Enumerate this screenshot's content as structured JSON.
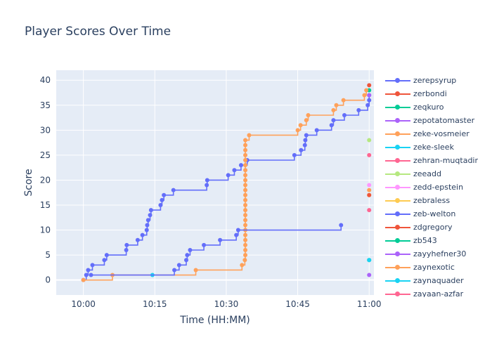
{
  "chart_data": {
    "type": "line",
    "line_shape": "step-after",
    "title": "Player Scores Over Time",
    "xlabel": "Time (HH:MM)",
    "ylabel": "Score",
    "x_ticks": [
      "10:00",
      "10:15",
      "10:30",
      "10:45",
      "11:00"
    ],
    "x_tick_minutes": [
      0,
      15,
      30,
      45,
      60
    ],
    "xlim_minutes": [
      -5.7,
      61.0
    ],
    "y_ticks": [
      0,
      5,
      10,
      15,
      20,
      25,
      30,
      35,
      40
    ],
    "ylim": [
      -3,
      42
    ],
    "grid": true,
    "legend_position": "right",
    "background": "#e5ecf6",
    "series": [
      {
        "name": "zerepsyrup",
        "color": "#636efa",
        "points": [
          [
            0,
            0
          ],
          [
            0.6,
            1
          ],
          [
            1.0,
            2
          ],
          [
            1.9,
            3
          ],
          [
            4.4,
            4
          ],
          [
            4.9,
            5
          ],
          [
            9.0,
            6
          ],
          [
            9.1,
            7
          ],
          [
            11.4,
            8
          ],
          [
            12.4,
            9
          ],
          [
            13.3,
            10
          ],
          [
            13.4,
            11
          ],
          [
            13.6,
            12
          ],
          [
            14.0,
            13
          ],
          [
            14.2,
            14
          ],
          [
            16.2,
            15
          ],
          [
            16.5,
            16
          ],
          [
            16.9,
            17
          ],
          [
            18.9,
            18
          ],
          [
            25.9,
            19
          ],
          [
            26.0,
            20
          ],
          [
            30.4,
            21
          ],
          [
            31.7,
            22
          ],
          [
            33.1,
            23
          ],
          [
            34.4,
            24
          ],
          [
            44.3,
            25
          ],
          [
            45.7,
            26
          ],
          [
            46.5,
            27
          ],
          [
            46.6,
            28
          ],
          [
            46.8,
            29
          ],
          [
            49.0,
            30
          ],
          [
            52.1,
            31
          ],
          [
            52.5,
            32
          ],
          [
            54.8,
            33
          ],
          [
            57.8,
            34
          ],
          [
            59.7,
            35
          ],
          [
            60.0,
            36
          ],
          [
            60.0,
            37
          ]
        ]
      },
      {
        "name": "zerbondi",
        "color": "#ef553b",
        "points": [
          [
            60.0,
            39
          ]
        ]
      },
      {
        "name": "zeqkuro",
        "color": "#00cc96",
        "points": [
          [
            60.0,
            38
          ]
        ]
      },
      {
        "name": "zepotatomaster",
        "color": "#ab63fa",
        "points": [
          [
            60.0,
            37
          ]
        ]
      },
      {
        "name": "zeke-vosmeier",
        "color": "#ffa15a",
        "points": [
          [
            0,
            0
          ],
          [
            6.1,
            1
          ],
          [
            23.6,
            2
          ],
          [
            33.3,
            3
          ],
          [
            33.9,
            4
          ],
          [
            34.0,
            5
          ],
          [
            34.0,
            6
          ],
          [
            34.0,
            7
          ],
          [
            34.0,
            8
          ],
          [
            34.0,
            9
          ],
          [
            34.0,
            10
          ],
          [
            34.0,
            11
          ],
          [
            34.0,
            12
          ],
          [
            34.0,
            13
          ],
          [
            34.0,
            14
          ],
          [
            34.0,
            15
          ],
          [
            34.0,
            16
          ],
          [
            34.0,
            17
          ],
          [
            34.0,
            18
          ],
          [
            34.0,
            19
          ],
          [
            34.0,
            20
          ],
          [
            34.0,
            21
          ],
          [
            34.0,
            22
          ],
          [
            34.0,
            23
          ],
          [
            34.0,
            24
          ],
          [
            34.0,
            25
          ],
          [
            34.0,
            26
          ],
          [
            34.0,
            27
          ],
          [
            34.0,
            28
          ],
          [
            34.8,
            29
          ],
          [
            45.0,
            30
          ],
          [
            45.6,
            31
          ],
          [
            46.8,
            32
          ],
          [
            47.2,
            33
          ],
          [
            52.5,
            34
          ],
          [
            53.1,
            35
          ],
          [
            54.6,
            36
          ],
          [
            59.0,
            37
          ],
          [
            59.4,
            38
          ]
        ]
      },
      {
        "name": "zeke-sleek",
        "color": "#19d3f3",
        "points": [
          [
            14.5,
            1
          ]
        ]
      },
      {
        "name": "zehran-muqtadir",
        "color": "#ff6692",
        "points": [
          [
            60.0,
            25
          ]
        ]
      },
      {
        "name": "zeeadd",
        "color": "#b6e880",
        "points": [
          [
            60.0,
            28
          ]
        ]
      },
      {
        "name": "zedd-epstein",
        "color": "#ff97ff",
        "points": [
          [
            60.0,
            19
          ]
        ]
      },
      {
        "name": "zebraless",
        "color": "#fecb52",
        "points": [
          [
            60.0,
            17
          ]
        ]
      },
      {
        "name": "zeb-welton",
        "color": "#636efa",
        "points": [
          [
            1.6,
            1
          ],
          [
            19.1,
            2
          ],
          [
            20.1,
            3
          ],
          [
            21.6,
            4
          ],
          [
            21.8,
            5
          ],
          [
            22.4,
            6
          ],
          [
            25.3,
            7
          ],
          [
            28.7,
            8
          ],
          [
            32.1,
            9
          ],
          [
            32.5,
            10
          ],
          [
            54.1,
            11
          ]
        ]
      },
      {
        "name": "zdgregory",
        "color": "#ef553b",
        "points": [
          [
            60.0,
            17
          ]
        ]
      },
      {
        "name": "zb543",
        "color": "#00cc96",
        "points": [
          [
            60.0,
            4
          ]
        ]
      },
      {
        "name": "zayyhefner30",
        "color": "#ab63fa",
        "points": [
          [
            60.0,
            1
          ]
        ]
      },
      {
        "name": "zaynexotic",
        "color": "#ffa15a",
        "points": [
          [
            60.0,
            18
          ]
        ]
      },
      {
        "name": "zaynaquader",
        "color": "#19d3f3",
        "points": [
          [
            60.0,
            4
          ]
        ]
      },
      {
        "name": "zayaan-azfar",
        "color": "#ff6692",
        "points": [
          [
            60.0,
            14
          ]
        ]
      }
    ]
  }
}
